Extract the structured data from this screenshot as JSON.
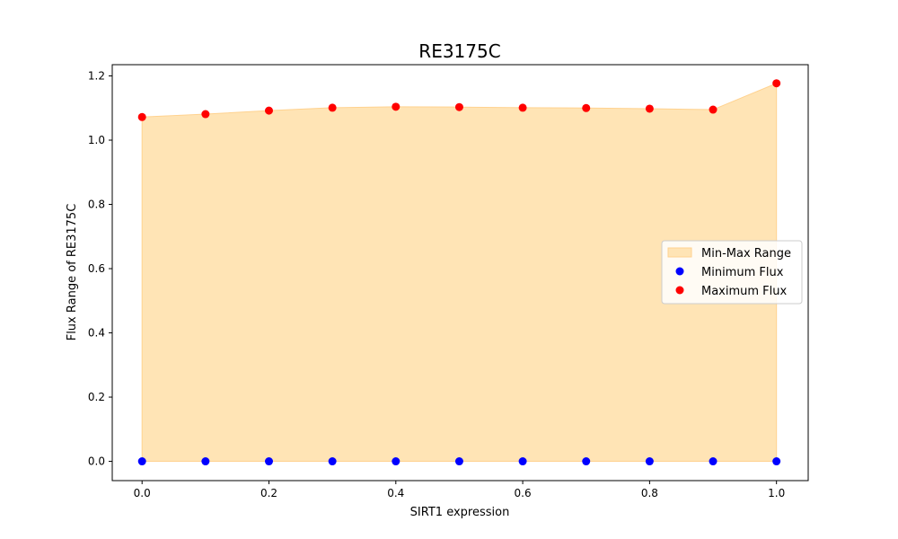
{
  "chart_data": {
    "type": "scatter",
    "title": "RE3175C",
    "xlabel": "SIRT1 expression",
    "ylabel": "Flux Range of RE3175C",
    "xlim": [
      -0.047,
      1.05
    ],
    "ylim": [
      -0.06,
      1.235
    ],
    "xticks": [
      0.0,
      0.2,
      0.4,
      0.6,
      0.8,
      1.0
    ],
    "xtick_labels": [
      "0.0",
      "0.2",
      "0.4",
      "0.6",
      "0.8",
      "1.0"
    ],
    "yticks": [
      0.0,
      0.2,
      0.4,
      0.6,
      0.8,
      1.0,
      1.2
    ],
    "ytick_labels": [
      "0.0",
      "0.2",
      "0.4",
      "0.6",
      "0.8",
      "1.0",
      "1.2"
    ],
    "grid": false,
    "legend_position": "center-right",
    "x": [
      0.0,
      0.1,
      0.2,
      0.3,
      0.4,
      0.5,
      0.6,
      0.7,
      0.8,
      0.9,
      1.0
    ],
    "series": [
      {
        "name": "Min-Max Range",
        "kind": "fill_between",
        "color": "#ffe4b5",
        "edge_color": "#ffd28f"
      },
      {
        "name": "Minimum Flux",
        "kind": "scatter",
        "color": "#0000ff",
        "values": [
          0,
          0,
          0,
          0,
          0,
          0,
          0,
          0,
          0,
          0,
          0
        ]
      },
      {
        "name": "Maximum Flux",
        "kind": "scatter",
        "color": "#ff0000",
        "values": [
          1.072,
          1.081,
          1.092,
          1.101,
          1.104,
          1.103,
          1.101,
          1.1,
          1.098,
          1.095,
          1.177
        ]
      }
    ]
  }
}
